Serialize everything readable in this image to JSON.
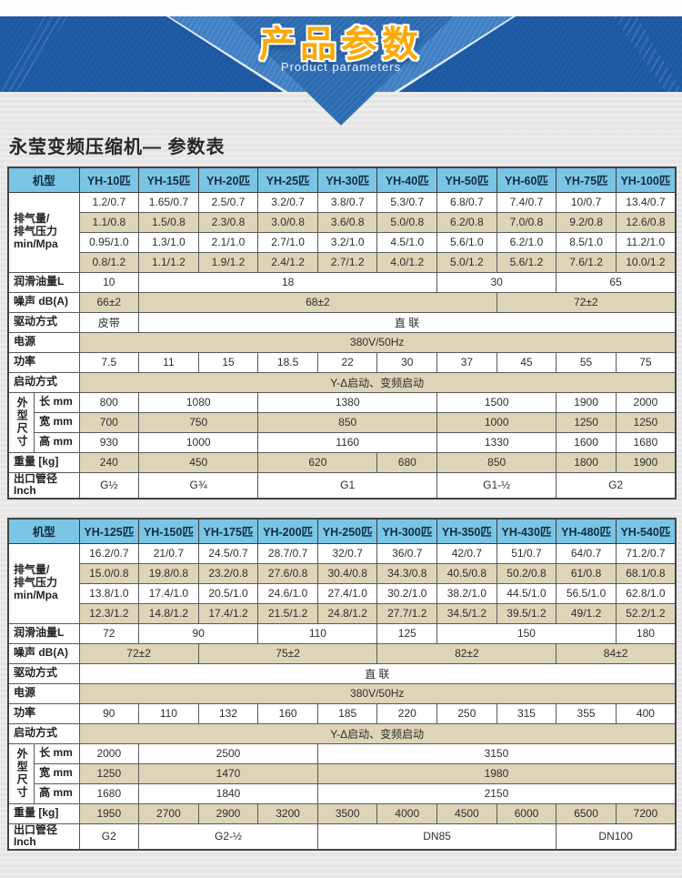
{
  "banner": {
    "title": "产品参数",
    "subtitle": "Product parameters",
    "colors": {
      "band": "#1c58a4",
      "wing": "#4080c6",
      "triangle": "#2d6bb1",
      "title_accent": "#ffa800"
    }
  },
  "page_title": "永莹变频压缩机— 参数表",
  "colors": {
    "header_blue": "#7ac5e5",
    "row_beige": "#ded4b8",
    "border": "#5a5a5a"
  },
  "tables": [
    {
      "name": "parameters-table-1",
      "header": {
        "label": "机型",
        "models": [
          "YH-10匹",
          "YH-15匹",
          "YH-20匹",
          "YH-25匹",
          "YH-30匹",
          "YH-40匹",
          "YH-50匹",
          "YH-60匹",
          "YH-75匹",
          "YH-100匹"
        ]
      },
      "rows": [
        {
          "labels": [
            {
              "text": "排气量/\n排气压力\nmin/Mpa",
              "rowspan": 4,
              "colspan": 2
            }
          ],
          "shaded": false,
          "cells": [
            "1.2/0.7",
            "1.65/0.7",
            "2.5/0.7",
            "3.2/0.7",
            "3.8/0.7",
            "5.3/0.7",
            "6.8/0.7",
            "7.4/0.7",
            "10/0.7",
            "13.4/0.7"
          ]
        },
        {
          "labels": [],
          "shaded": true,
          "cells": [
            "1.1/0.8",
            "1.5/0.8",
            "2.3/0.8",
            "3.0/0.8",
            "3.6/0.8",
            "5.0/0.8",
            "6.2/0.8",
            "7.0/0.8",
            "9.2/0.8",
            "12.6/0.8"
          ]
        },
        {
          "labels": [],
          "shaded": false,
          "cells": [
            "0.95/1.0",
            "1.3/1.0",
            "2.1/1.0",
            "2.7/1.0",
            "3.2/1.0",
            "4.5/1.0",
            "5.6/1.0",
            "6.2/1.0",
            "8.5/1.0",
            "11.2/1.0"
          ]
        },
        {
          "labels": [],
          "shaded": true,
          "cells": [
            "0.8/1.2",
            "1.1/1.2",
            "1.9/1.2",
            "2.4/1.2",
            "2.7/1.2",
            "4.0/1.2",
            "5.0/1.2",
            "5.6/1.2",
            "7.6/1.2",
            "10.0/1.2"
          ]
        },
        {
          "labels": [
            {
              "text": "润滑油量L",
              "colspan": 2
            }
          ],
          "shaded": false,
          "cells": [
            {
              "t": "10",
              "s": 1
            },
            {
              "t": "18",
              "s": 5
            },
            {
              "t": "30",
              "s": 2
            },
            {
              "t": "65",
              "s": 2
            }
          ]
        },
        {
          "labels": [
            {
              "text": "噪声 dB(A)",
              "colspan": 2
            }
          ],
          "shaded": true,
          "cells": [
            {
              "t": "66±2",
              "s": 1
            },
            {
              "t": "68±2",
              "s": 6
            },
            {
              "t": "72±2",
              "s": 3
            }
          ]
        },
        {
          "labels": [
            {
              "text": "驱动方式",
              "colspan": 2
            }
          ],
          "shaded": false,
          "cells": [
            {
              "t": "皮带",
              "s": 1
            },
            {
              "t": "直 联",
              "s": 9
            }
          ]
        },
        {
          "labels": [
            {
              "text": "电源",
              "colspan": 2
            }
          ],
          "shaded": true,
          "cells": [
            {
              "t": "380V/50Hz",
              "s": 10
            }
          ]
        },
        {
          "labels": [
            {
              "text": "功率",
              "colspan": 2
            }
          ],
          "shaded": false,
          "cells": [
            "7.5",
            "11",
            "15",
            "18.5",
            "22",
            "30",
            "37",
            "45",
            "55",
            "75"
          ]
        },
        {
          "labels": [
            {
              "text": "启动方式",
              "colspan": 2
            }
          ],
          "shaded": true,
          "cells": [
            {
              "t": "Y-Δ启动、变频启动",
              "s": 10
            }
          ]
        },
        {
          "labels": [
            {
              "text": "外型尺寸",
              "rowspan": 3,
              "colspan": 1,
              "vertical": true
            },
            {
              "text": "长 mm",
              "colspan": 1,
              "sub": true
            }
          ],
          "shaded": false,
          "cells": [
            {
              "t": "800",
              "s": 1
            },
            {
              "t": "1080",
              "s": 2
            },
            {
              "t": "1380",
              "s": 3
            },
            {
              "t": "1500",
              "s": 2
            },
            {
              "t": "1900",
              "s": 1
            },
            {
              "t": "2000",
              "s": 1
            }
          ]
        },
        {
          "labels": [
            {
              "text": "宽 mm",
              "colspan": 1,
              "sub": true
            }
          ],
          "shaded": true,
          "cells": [
            {
              "t": "700",
              "s": 1
            },
            {
              "t": "750",
              "s": 2
            },
            {
              "t": "850",
              "s": 3
            },
            {
              "t": "1000",
              "s": 2
            },
            {
              "t": "1250",
              "s": 1
            },
            {
              "t": "1250",
              "s": 1
            }
          ]
        },
        {
          "labels": [
            {
              "text": "高 mm",
              "colspan": 1,
              "sub": true
            }
          ],
          "shaded": false,
          "cells": [
            {
              "t": "930",
              "s": 1
            },
            {
              "t": "1000",
              "s": 2
            },
            {
              "t": "1160",
              "s": 3
            },
            {
              "t": "1330",
              "s": 2
            },
            {
              "t": "1600",
              "s": 1
            },
            {
              "t": "1680",
              "s": 1
            }
          ]
        },
        {
          "labels": [
            {
              "text": "重量 [kg]",
              "colspan": 2
            }
          ],
          "shaded": true,
          "cells": [
            {
              "t": "240",
              "s": 1
            },
            {
              "t": "450",
              "s": 2
            },
            {
              "t": "620",
              "s": 2
            },
            {
              "t": "680",
              "s": 1
            },
            {
              "t": "850",
              "s": 2
            },
            {
              "t": "1800",
              "s": 1
            },
            {
              "t": "1900",
              "s": 1
            }
          ]
        },
        {
          "labels": [
            {
              "text": "出口管径 Inch",
              "colspan": 2
            }
          ],
          "shaded": false,
          "cells": [
            {
              "t": "G½",
              "s": 1
            },
            {
              "t": "G¾",
              "s": 2
            },
            {
              "t": "G1",
              "s": 3
            },
            {
              "t": "G1-½",
              "s": 2
            },
            {
              "t": "G2",
              "s": 2
            }
          ]
        }
      ]
    },
    {
      "name": "parameters-table-2",
      "header": {
        "label": "机型",
        "models": [
          "YH-125匹",
          "YH-150匹",
          "YH-175匹",
          "YH-200匹",
          "YH-250匹",
          "YH-300匹",
          "YH-350匹",
          "YH-430匹",
          "YH-480匹",
          "YH-540匹"
        ]
      },
      "rows": [
        {
          "labels": [
            {
              "text": "排气量/\n排气压力\nmin/Mpa",
              "rowspan": 4,
              "colspan": 2
            }
          ],
          "shaded": false,
          "cells": [
            "16.2/0.7",
            "21/0.7",
            "24.5/0.7",
            "28.7/0.7",
            "32/0.7",
            "36/0.7",
            "42/0.7",
            "51/0.7",
            "64/0.7",
            "71.2/0.7"
          ]
        },
        {
          "labels": [],
          "shaded": true,
          "cells": [
            "15.0/0.8",
            "19.8/0.8",
            "23.2/0.8",
            "27.6/0.8",
            "30.4/0.8",
            "34.3/0.8",
            "40.5/0.8",
            "50.2/0.8",
            "61/0.8",
            "68.1/0.8"
          ]
        },
        {
          "labels": [],
          "shaded": false,
          "cells": [
            "13.8/1.0",
            "17.4/1.0",
            "20.5/1.0",
            "24.6/1.0",
            "27.4/1.0",
            "30.2/1.0",
            "38.2/1.0",
            "44.5/1.0",
            "56.5/1.0",
            "62.8/1.0"
          ]
        },
        {
          "labels": [],
          "shaded": true,
          "cells": [
            "12.3/1.2",
            "14.8/1.2",
            "17.4/1.2",
            "21.5/1.2",
            "24.8/1.2",
            "27.7/1.2",
            "34.5/1.2",
            "39.5/1.2",
            "49/1.2",
            "52.2/1.2"
          ]
        },
        {
          "labels": [
            {
              "text": "润滑油量L",
              "colspan": 2
            }
          ],
          "shaded": false,
          "cells": [
            {
              "t": "72",
              "s": 1
            },
            {
              "t": "90",
              "s": 2
            },
            {
              "t": "110",
              "s": 2
            },
            {
              "t": "125",
              "s": 1
            },
            {
              "t": "150",
              "s": 3
            },
            {
              "t": "180",
              "s": 1
            }
          ]
        },
        {
          "labels": [
            {
              "text": "噪声 dB(A)",
              "colspan": 2
            }
          ],
          "shaded": true,
          "cells": [
            {
              "t": "72±2",
              "s": 2
            },
            {
              "t": "75±2",
              "s": 3
            },
            {
              "t": "82±2",
              "s": 3
            },
            {
              "t": "84±2",
              "s": 2
            }
          ]
        },
        {
          "labels": [
            {
              "text": "驱动方式",
              "colspan": 2
            }
          ],
          "shaded": false,
          "cells": [
            {
              "t": "直 联",
              "s": 10
            }
          ]
        },
        {
          "labels": [
            {
              "text": "电源",
              "colspan": 2
            }
          ],
          "shaded": true,
          "cells": [
            {
              "t": "380V/50Hz",
              "s": 10
            }
          ]
        },
        {
          "labels": [
            {
              "text": "功率",
              "colspan": 2
            }
          ],
          "shaded": false,
          "cells": [
            "90",
            "110",
            "132",
            "160",
            "185",
            "220",
            "250",
            "315",
            "355",
            "400"
          ]
        },
        {
          "labels": [
            {
              "text": "启动方式",
              "colspan": 2
            }
          ],
          "shaded": true,
          "cells": [
            {
              "t": "Y-Δ启动、变频启动",
              "s": 10
            }
          ]
        },
        {
          "labels": [
            {
              "text": "外型尺寸",
              "rowspan": 3,
              "colspan": 1,
              "vertical": true
            },
            {
              "text": "长 mm",
              "colspan": 1,
              "sub": true
            }
          ],
          "shaded": false,
          "cells": [
            {
              "t": "2000",
              "s": 1
            },
            {
              "t": "2500",
              "s": 3
            },
            {
              "t": "3150",
              "s": 6
            }
          ]
        },
        {
          "labels": [
            {
              "text": "宽 mm",
              "colspan": 1,
              "sub": true
            }
          ],
          "shaded": true,
          "cells": [
            {
              "t": "1250",
              "s": 1
            },
            {
              "t": "1470",
              "s": 3
            },
            {
              "t": "1980",
              "s": 6
            }
          ]
        },
        {
          "labels": [
            {
              "text": "高 mm",
              "colspan": 1,
              "sub": true
            }
          ],
          "shaded": false,
          "cells": [
            {
              "t": "1680",
              "s": 1
            },
            {
              "t": "1840",
              "s": 3
            },
            {
              "t": "2150",
              "s": 6
            }
          ]
        },
        {
          "labels": [
            {
              "text": "重量 [kg]",
              "colspan": 2
            }
          ],
          "shaded": true,
          "cells": [
            "1950",
            "2700",
            "2900",
            "3200",
            "3500",
            "4000",
            "4500",
            "6000",
            "6500",
            "7200"
          ]
        },
        {
          "labels": [
            {
              "text": "出口管径 Inch",
              "colspan": 2
            }
          ],
          "shaded": false,
          "cells": [
            {
              "t": "G2",
              "s": 1
            },
            {
              "t": "G2-½",
              "s": 3
            },
            {
              "t": "DN85",
              "s": 4
            },
            {
              "t": "DN100",
              "s": 2
            }
          ]
        }
      ]
    }
  ]
}
